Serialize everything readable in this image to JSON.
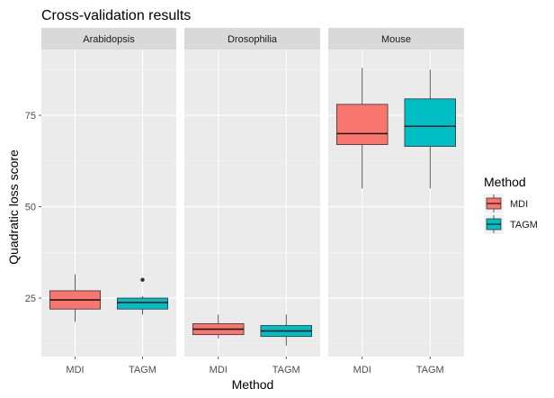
{
  "chart_data": {
    "type": "boxplot",
    "title": "Cross-validation results",
    "xlabel": "Method",
    "ylabel": "Quadratic loss score",
    "ylim": [
      9,
      93
    ],
    "y_ticks": [
      25,
      50,
      75
    ],
    "grid": true,
    "legend": {
      "title": "Method",
      "placement": "right",
      "entries": [
        {
          "name": "MDI",
          "color": "#F8766D"
        },
        {
          "name": "TAGM",
          "color": "#00BFC4"
        }
      ]
    },
    "facets": [
      {
        "name": "Arabidopsis",
        "categories": [
          "MDI",
          "TAGM"
        ],
        "boxes": [
          {
            "method": "MDI",
            "min": 18.5,
            "q1": 22,
            "median": 24.5,
            "q3": 27,
            "max": 31.5,
            "outliers": []
          },
          {
            "method": "TAGM",
            "min": 20.5,
            "q1": 22,
            "median": 23.8,
            "q3": 25,
            "max": 25.5,
            "outliers": [
              30
            ]
          }
        ]
      },
      {
        "name": "Drosophilia",
        "categories": [
          "MDI",
          "TAGM"
        ],
        "boxes": [
          {
            "method": "MDI",
            "min": 14,
            "q1": 15,
            "median": 16.5,
            "q3": 18,
            "max": 20.5,
            "outliers": []
          },
          {
            "method": "TAGM",
            "min": 12,
            "q1": 14.5,
            "median": 16,
            "q3": 17.5,
            "max": 20.5,
            "outliers": []
          }
        ]
      },
      {
        "name": "Mouse",
        "categories": [
          "MDI",
          "TAGM"
        ],
        "boxes": [
          {
            "method": "MDI",
            "min": 55,
            "q1": 67,
            "median": 70,
            "q3": 78,
            "max": 88,
            "outliers": []
          },
          {
            "method": "TAGM",
            "min": 55,
            "q1": 66.5,
            "median": 72,
            "q3": 79.5,
            "max": 87.5,
            "outliers": []
          }
        ]
      }
    ]
  }
}
